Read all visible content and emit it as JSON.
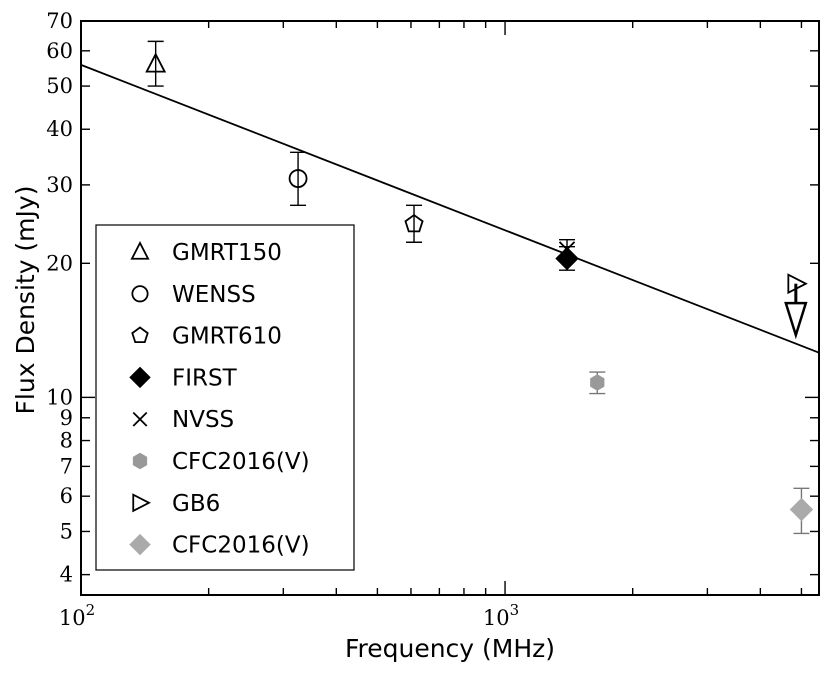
{
  "chart_data": {
    "type": "scatter",
    "xlabel": "Frequency (MHz)",
    "ylabel": "Flux Density (mJy)",
    "xscale": "log",
    "yscale": "log",
    "xlim": [
      100,
      5500
    ],
    "ylim": [
      3.6,
      70
    ],
    "grid": false,
    "legend_position": "lower-left",
    "x_ticks": [
      {
        "value": 100,
        "base": "10",
        "exp": "2"
      },
      {
        "value": 1000,
        "base": "10",
        "exp": "3"
      }
    ],
    "y_ticks": [
      {
        "value": 4,
        "label": "4"
      },
      {
        "value": 5,
        "label": "5"
      },
      {
        "value": 6,
        "label": "6"
      },
      {
        "value": 7,
        "label": "7"
      },
      {
        "value": 8,
        "label": "8"
      },
      {
        "value": 9,
        "label": "9"
      },
      {
        "value": 10,
        "label": "10"
      },
      {
        "value": 20,
        "label": "20"
      },
      {
        "value": 30,
        "label": "30"
      },
      {
        "value": 40,
        "label": "40"
      },
      {
        "value": 50,
        "label": "50"
      },
      {
        "value": 60,
        "label": "60"
      },
      {
        "value": 70,
        "label": "70"
      }
    ],
    "fit_line": {
      "x": [
        100,
        5500
      ],
      "y": [
        55.8,
        12.6
      ]
    },
    "series": [
      {
        "name": "GMRT150",
        "marker": "triangle-up-open",
        "color": "#000000",
        "points": [
          {
            "x": 150,
            "y": 56,
            "err_low": 50,
            "err_high": 63
          }
        ]
      },
      {
        "name": "WENSS",
        "marker": "circle-open",
        "color": "#000000",
        "points": [
          {
            "x": 325,
            "y": 31,
            "err_low": 27,
            "err_high": 35.5
          }
        ]
      },
      {
        "name": "GMRT610",
        "marker": "pentagon-open",
        "color": "#000000",
        "points": [
          {
            "x": 610,
            "y": 24.5,
            "err_low": 22.3,
            "err_high": 27
          }
        ]
      },
      {
        "name": "FIRST",
        "marker": "diamond-filled",
        "color": "#000000",
        "points": [
          {
            "x": 1400,
            "y": 20.5,
            "err_low": 19.3,
            "err_high": 21.8
          }
        ]
      },
      {
        "name": "NVSS",
        "marker": "x",
        "color": "#000000",
        "points": [
          {
            "x": 1400,
            "y": 21.5,
            "err_low": 20.5,
            "err_high": 22.6
          }
        ]
      },
      {
        "name": "CFC2016(V)",
        "marker": "hexagon-filled",
        "color": "#999999",
        "points": [
          {
            "x": 1650,
            "y": 10.8,
            "err_low": 10.2,
            "err_high": 11.4
          }
        ]
      },
      {
        "name": "GB6",
        "marker": "triangle-right-open",
        "color": "#000000",
        "points": [
          {
            "x": 4850,
            "y": 18
          }
        ],
        "upper_limit": {
          "y_top": 18,
          "y_bottom": 13.8
        }
      },
      {
        "name": "CFC2016(V)",
        "marker": "diamond-filled",
        "color": "#aaaaaa",
        "points": [
          {
            "x": 5000,
            "y": 5.6,
            "err_low": 4.95,
            "err_high": 6.25
          }
        ]
      }
    ]
  }
}
